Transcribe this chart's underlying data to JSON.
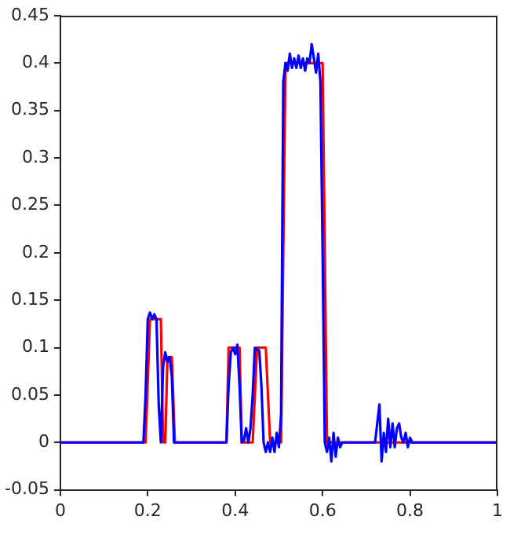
{
  "chart_data": {
    "type": "line",
    "xlim": [
      0,
      1
    ],
    "xticks": [
      0,
      0.2,
      0.4,
      0.6,
      0.8,
      1
    ],
    "ylim": [
      -0.05,
      0.45
    ],
    "yticks": [
      -0.05,
      0,
      0.05,
      0.1,
      0.15,
      0.2,
      0.25,
      0.3,
      0.35,
      0.4,
      0.45
    ],
    "grid": false,
    "legend": false,
    "marker": "none",
    "line_style": "solid",
    "series": [
      {
        "color": "#ff0000",
        "x": [
          0,
          0.195,
          0.205,
          0.23,
          0.235,
          0.24,
          0.245,
          0.255,
          0.262,
          0.38,
          0.385,
          0.41,
          0.415,
          0.44,
          0.45,
          0.47,
          0.48,
          0.505,
          0.515,
          0.6,
          0.61,
          1
        ],
        "values": [
          0,
          0,
          0.13,
          0.13,
          0,
          0,
          0.09,
          0.09,
          0,
          0,
          0.1,
          0.1,
          0,
          0,
          0.1,
          0.1,
          0,
          0,
          0.4,
          0.4,
          0,
          0
        ]
      },
      {
        "color": "#0000ff",
        "x": [
          0,
          0.19,
          0.195,
          0.2,
          0.205,
          0.21,
          0.215,
          0.22,
          0.225,
          0.23,
          0.235,
          0.24,
          0.245,
          0.25,
          0.255,
          0.26,
          0.38,
          0.385,
          0.39,
          0.395,
          0.4,
          0.405,
          0.41,
          0.415,
          0.42,
          0.425,
          0.43,
          0.435,
          0.44,
          0.445,
          0.45,
          0.455,
          0.46,
          0.465,
          0.47,
          0.475,
          0.48,
          0.485,
          0.49,
          0.495,
          0.5,
          0.505,
          0.51,
          0.515,
          0.52,
          0.525,
          0.53,
          0.535,
          0.54,
          0.545,
          0.55,
          0.555,
          0.56,
          0.565,
          0.57,
          0.575,
          0.58,
          0.585,
          0.59,
          0.595,
          0.6,
          0.605,
          0.61,
          0.615,
          0.62,
          0.625,
          0.63,
          0.635,
          0.64,
          0.645,
          0.72,
          0.725,
          0.73,
          0.735,
          0.74,
          0.745,
          0.75,
          0.755,
          0.76,
          0.765,
          0.77,
          0.775,
          0.78,
          0.785,
          0.79,
          0.795,
          0.8,
          0.805,
          1
        ],
        "values": [
          0,
          0,
          0.05,
          0.13,
          0.137,
          0.13,
          0.135,
          0.13,
          0.04,
          0,
          0.08,
          0.095,
          0.085,
          0.09,
          0.07,
          0,
          0,
          0.06,
          0.095,
          0.1,
          0.093,
          0.103,
          0.06,
          0,
          0.002,
          0.015,
          0,
          0.015,
          0.05,
          0.1,
          0.098,
          0.097,
          0.06,
          0,
          -0.01,
          0,
          -0.01,
          0.005,
          -0.01,
          0.01,
          -0.005,
          0.03,
          0.38,
          0.4,
          0.392,
          0.41,
          0.395,
          0.405,
          0.395,
          0.408,
          0.395,
          0.405,
          0.392,
          0.405,
          0.4,
          0.42,
          0.405,
          0.39,
          0.41,
          0.38,
          0.2,
          0,
          -0.01,
          0.005,
          -0.02,
          0.01,
          -0.015,
          0.005,
          -0.005,
          0,
          0,
          0.02,
          0.04,
          -0.02,
          0.01,
          -0.01,
          0.025,
          -0.005,
          0.02,
          -0.005,
          0.015,
          0.02,
          0.005,
          0,
          0.01,
          -0.005,
          0.005,
          0,
          0
        ]
      }
    ]
  }
}
